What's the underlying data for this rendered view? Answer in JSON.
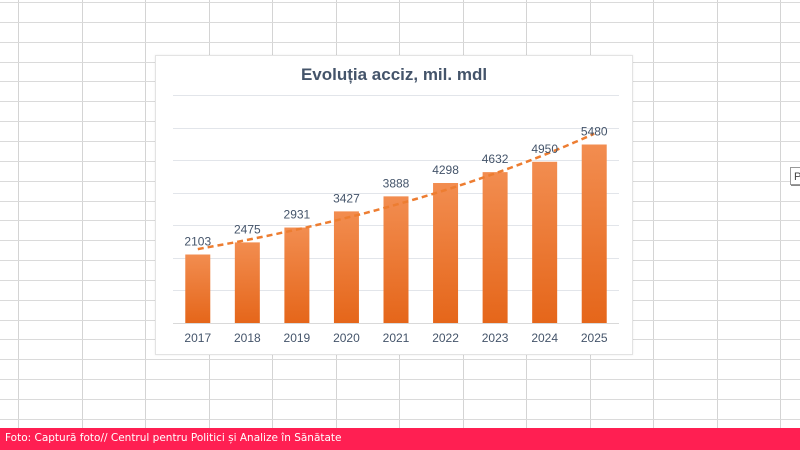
{
  "chart_data": {
    "type": "bar",
    "title": "Evoluția acciz, mil. mdl",
    "categories": [
      "2017",
      "2018",
      "2019",
      "2020",
      "2021",
      "2022",
      "2023",
      "2024",
      "2025"
    ],
    "values": [
      2103,
      2475,
      2931,
      3427,
      3888,
      4298,
      4632,
      4950,
      5480
    ],
    "data_labels": [
      "2103",
      "2475",
      "2931",
      "3427",
      "3888",
      "4298",
      "4632",
      "4950",
      "5480"
    ],
    "xlabel": "",
    "ylabel": "",
    "ylim": [
      0,
      7000
    ],
    "ytick_step": 1000,
    "grid": true,
    "yaxis_labels_visible": false,
    "trendline": {
      "type": "exponential",
      "style": "dashed"
    },
    "colors": {
      "bar_top": "#f28d50",
      "bar_bottom": "#e5661a",
      "trendline": "#ed7d31",
      "label": "#44546a",
      "grid": "#e2e5ea"
    }
  },
  "spreadsheet": {
    "paste_options_label": "P"
  },
  "caption": {
    "text": "Foto: Captură foto// Centrul pentru Politici și Analize în Sănătate",
    "background": "#ff1f52"
  }
}
